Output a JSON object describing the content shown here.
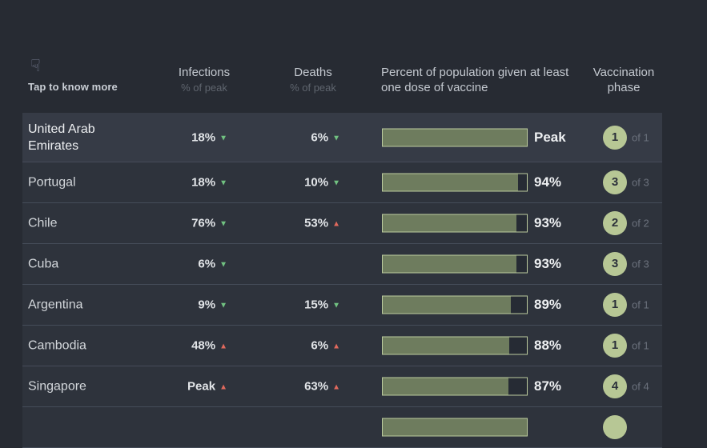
{
  "colors": {
    "page_bg": "#272b33",
    "row_bg": "#2e333c",
    "row_highlight_bg": "#363b46",
    "divider": "#454c58",
    "header_text": "#c4c9d0",
    "header_subtext": "#5f656e",
    "value_text": "#e2e5e8",
    "trend_down_green": "#71c281",
    "trend_up_red": "#e1695d",
    "bar_border": "#bccb9e",
    "bar_fill": "#6e7c5e",
    "bar_empty": "#262b34",
    "phase_badge_bg": "#b7c795",
    "phase_badge_text": "#2b303a"
  },
  "icons": {
    "hand_glyph": "☟",
    "hand_name": "pointing-hand-down-icon",
    "up_glyph": "▲",
    "down_glyph": "▼"
  },
  "header": {
    "tap_label": "Tap to know more",
    "infections": "Infections",
    "infections_sub": "% of peak",
    "deaths": "Deaths",
    "deaths_sub": "% of peak",
    "vaccine_line1": "Percent of population given at least",
    "vaccine_line2": "one dose of vaccine",
    "phase_line1": "Vaccination",
    "phase_line2": "phase"
  },
  "rows": [
    {
      "country": "United Arab Emirates",
      "infections": {
        "value": "18%",
        "trend": "down"
      },
      "deaths": {
        "value": "6%",
        "trend": "down"
      },
      "vaccine": {
        "pct": 100,
        "label": "Peak"
      },
      "phase": {
        "num": "1",
        "of": "of 1"
      },
      "highlighted": true
    },
    {
      "country": "Portugal",
      "infections": {
        "value": "18%",
        "trend": "down"
      },
      "deaths": {
        "value": "10%",
        "trend": "down"
      },
      "vaccine": {
        "pct": 94,
        "label": "94%"
      },
      "phase": {
        "num": "3",
        "of": "of 3"
      },
      "highlighted": false
    },
    {
      "country": "Chile",
      "infections": {
        "value": "76%",
        "trend": "down"
      },
      "deaths": {
        "value": "53%",
        "trend": "up"
      },
      "vaccine": {
        "pct": 93,
        "label": "93%"
      },
      "phase": {
        "num": "2",
        "of": "of 2"
      },
      "highlighted": false
    },
    {
      "country": "Cuba",
      "infections": {
        "value": "6%",
        "trend": "down"
      },
      "deaths": null,
      "vaccine": {
        "pct": 93,
        "label": "93%"
      },
      "phase": {
        "num": "3",
        "of": "of 3"
      },
      "highlighted": false
    },
    {
      "country": "Argentina",
      "infections": {
        "value": "9%",
        "trend": "down"
      },
      "deaths": {
        "value": "15%",
        "trend": "down"
      },
      "vaccine": {
        "pct": 89,
        "label": "89%"
      },
      "phase": {
        "num": "1",
        "of": "of 1"
      },
      "highlighted": false
    },
    {
      "country": "Cambodia",
      "infections": {
        "value": "48%",
        "trend": "up"
      },
      "deaths": {
        "value": "6%",
        "trend": "up"
      },
      "vaccine": {
        "pct": 88,
        "label": "88%"
      },
      "phase": {
        "num": "1",
        "of": "of 1"
      },
      "highlighted": false
    },
    {
      "country": "Singapore",
      "infections": {
        "value": "Peak",
        "trend": "up"
      },
      "deaths": {
        "value": "63%",
        "trend": "up"
      },
      "vaccine": {
        "pct": 87,
        "label": "87%"
      },
      "phase": {
        "num": "4",
        "of": "of 4"
      },
      "highlighted": false
    },
    {
      "country": "",
      "infections": null,
      "deaths": null,
      "vaccine": {
        "pct": 100,
        "label": ""
      },
      "phase": {
        "num": "",
        "of": ""
      },
      "highlighted": false
    }
  ]
}
